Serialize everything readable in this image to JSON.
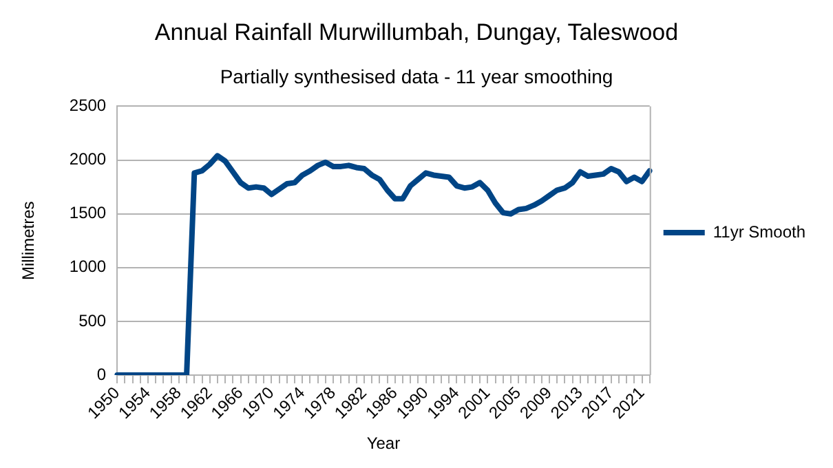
{
  "chart_data": {
    "type": "line",
    "title": "Annual Rainfall Murwillumbah, Dungay, Taleswood",
    "subtitle": "Partially synthesised data - 11 year smoothing",
    "xlabel": "Year",
    "ylabel": "Millimetres",
    "categories": [
      "1950",
      null,
      null,
      null,
      "1954",
      null,
      null,
      null,
      "1958",
      null,
      null,
      null,
      "1962",
      null,
      null,
      null,
      "1966",
      null,
      null,
      null,
      "1970",
      null,
      null,
      null,
      "1974",
      null,
      null,
      null,
      "1978",
      null,
      null,
      null,
      "1982",
      null,
      null,
      null,
      "1986",
      null,
      null,
      null,
      "1990",
      null,
      null,
      null,
      "1994",
      null,
      null,
      null,
      "2001",
      null,
      null,
      null,
      "2005",
      null,
      null,
      null,
      "2009",
      null,
      null,
      null,
      "2013",
      null,
      null,
      null,
      "2017",
      null,
      null,
      null,
      "2021",
      null
    ],
    "series": [
      {
        "name": "11yr Smooth",
        "color": "#004586",
        "values": [
          0,
          0,
          0,
          0,
          0,
          0,
          0,
          0,
          0,
          0,
          1880,
          1900,
          1960,
          2040,
          1990,
          1890,
          1790,
          1740,
          1750,
          1740,
          1680,
          1730,
          1780,
          1790,
          1860,
          1900,
          1950,
          1980,
          1940,
          1940,
          1950,
          1930,
          1920,
          1860,
          1820,
          1720,
          1640,
          1640,
          1760,
          1820,
          1880,
          1860,
          1850,
          1840,
          1760,
          1740,
          1750,
          1790,
          1720,
          1600,
          1510,
          1500,
          1540,
          1550,
          1580,
          1620,
          1670,
          1720,
          1740,
          1790,
          1890,
          1850,
          1860,
          1870,
          1920,
          1890,
          1800,
          1840,
          1800,
          1900
        ]
      }
    ],
    "ylim": [
      0,
      2500
    ],
    "yticks": [
      0,
      500,
      1000,
      1500,
      2000,
      2500
    ],
    "grid": "y",
    "legend": "right",
    "marker": "none",
    "line_style": "solid"
  }
}
